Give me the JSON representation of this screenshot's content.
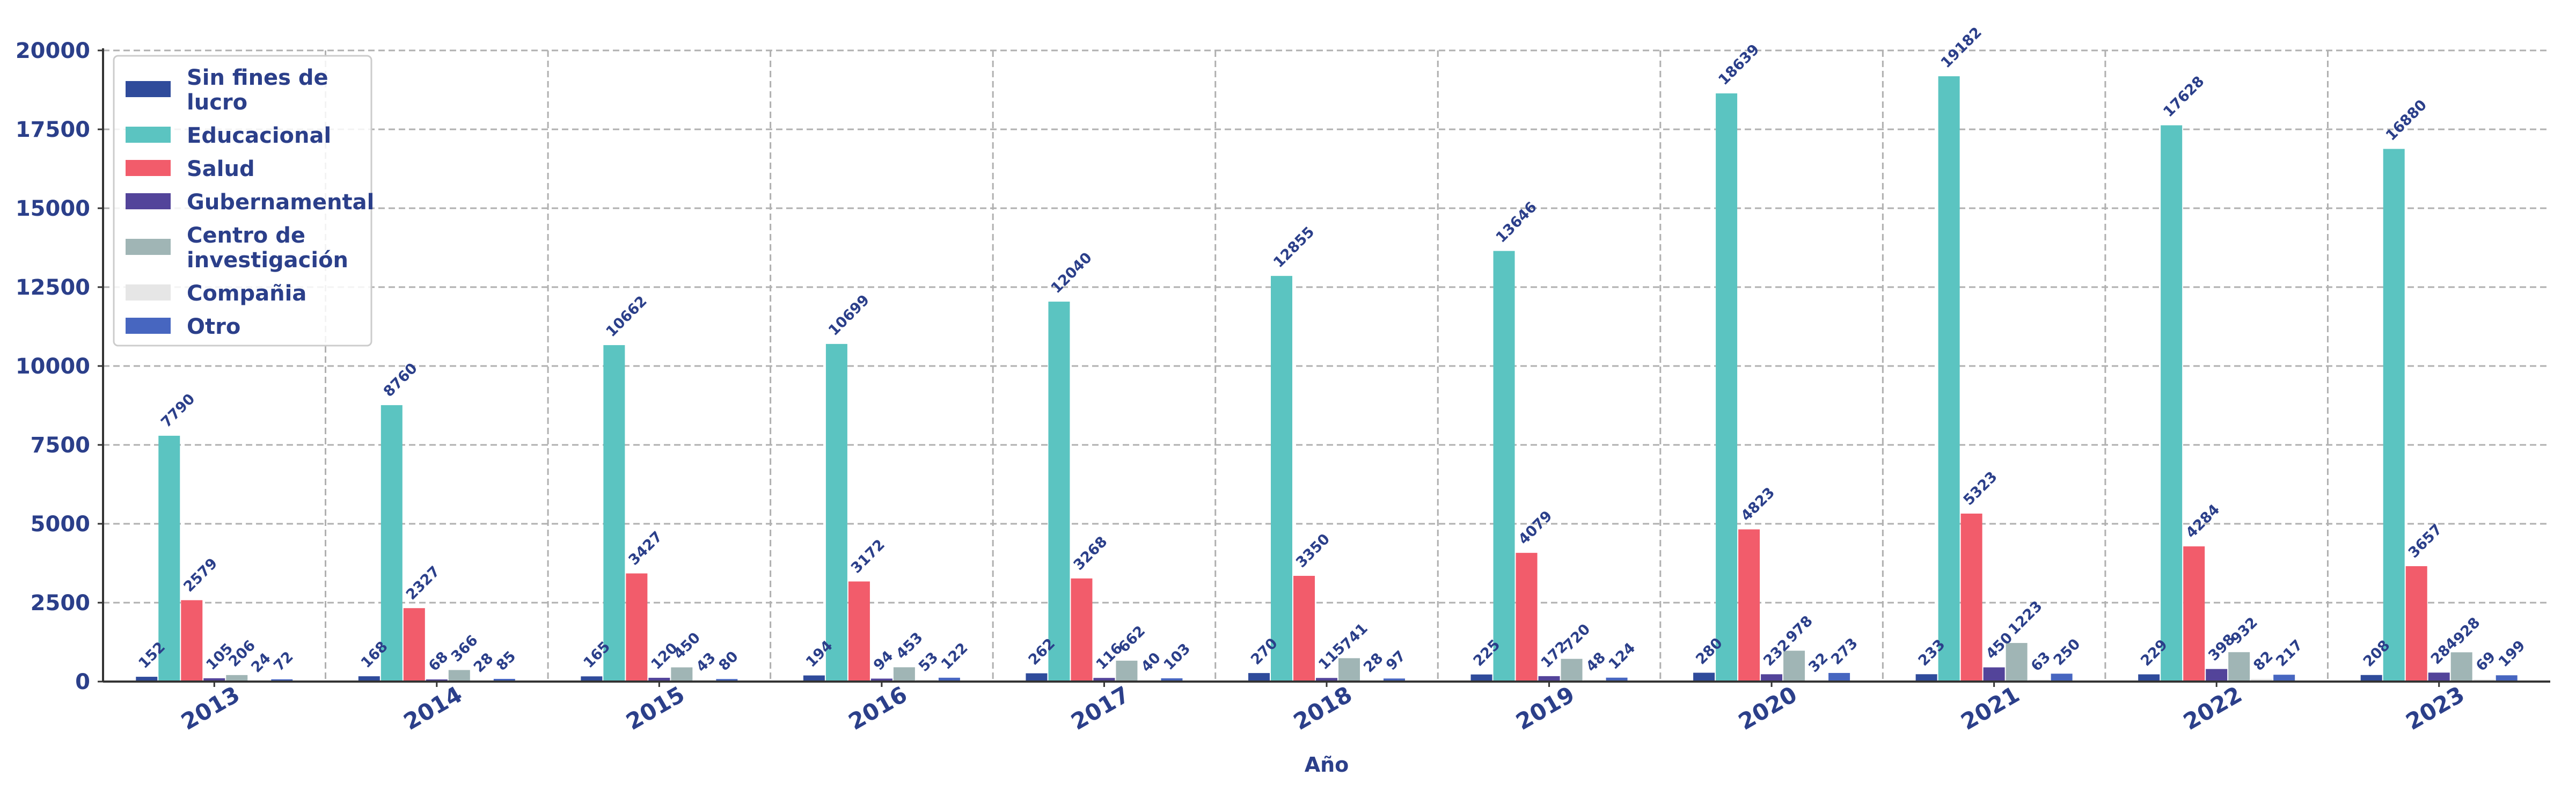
{
  "chart_data": {
    "type": "bar",
    "title": "",
    "xlabel": "Año",
    "ylabel": "",
    "ylim": [
      0,
      20000
    ],
    "yticks": [
      "0",
      "2500",
      "5000",
      "7500",
      "10000",
      "12500",
      "15000",
      "17500",
      "20000"
    ],
    "grid": true,
    "legend_position": "top-left",
    "categories": [
      "2013",
      "2014",
      "2015",
      "2016",
      "2017",
      "2018",
      "2019",
      "2020",
      "2021",
      "2022",
      "2023"
    ],
    "series": [
      {
        "name": "Sin fines de lucro",
        "color": "#2f4b9b",
        "values": [
          152,
          168,
          165,
          194,
          262,
          270,
          225,
          280,
          233,
          229,
          208
        ]
      },
      {
        "name": "Educacional",
        "color": "#5bc4c1",
        "values": [
          7790,
          8760,
          10662,
          10699,
          12040,
          12855,
          13646,
          18639,
          19182,
          17628,
          16880
        ]
      },
      {
        "name": "Salud",
        "color": "#f25c6b",
        "values": [
          2579,
          2327,
          3427,
          3172,
          3268,
          3350,
          4079,
          4823,
          5323,
          4284,
          3657
        ]
      },
      {
        "name": "Gubernamental",
        "color": "#53449a",
        "values": [
          105,
          68,
          120,
          94,
          116,
          115,
          172,
          232,
          450,
          398,
          284
        ]
      },
      {
        "name": "Centro de investigación",
        "color": "#a0b5b5",
        "values": [
          206,
          366,
          450,
          453,
          662,
          741,
          720,
          978,
          1223,
          932,
          928
        ]
      },
      {
        "name": "Compañia",
        "color": "#e6e6e6",
        "values": [
          24,
          28,
          43,
          53,
          40,
          28,
          48,
          32,
          63,
          82,
          69
        ]
      },
      {
        "name": "Otro",
        "color": "#4766c0",
        "values": [
          72,
          85,
          80,
          122,
          103,
          97,
          124,
          273,
          250,
          217,
          199
        ]
      }
    ]
  }
}
